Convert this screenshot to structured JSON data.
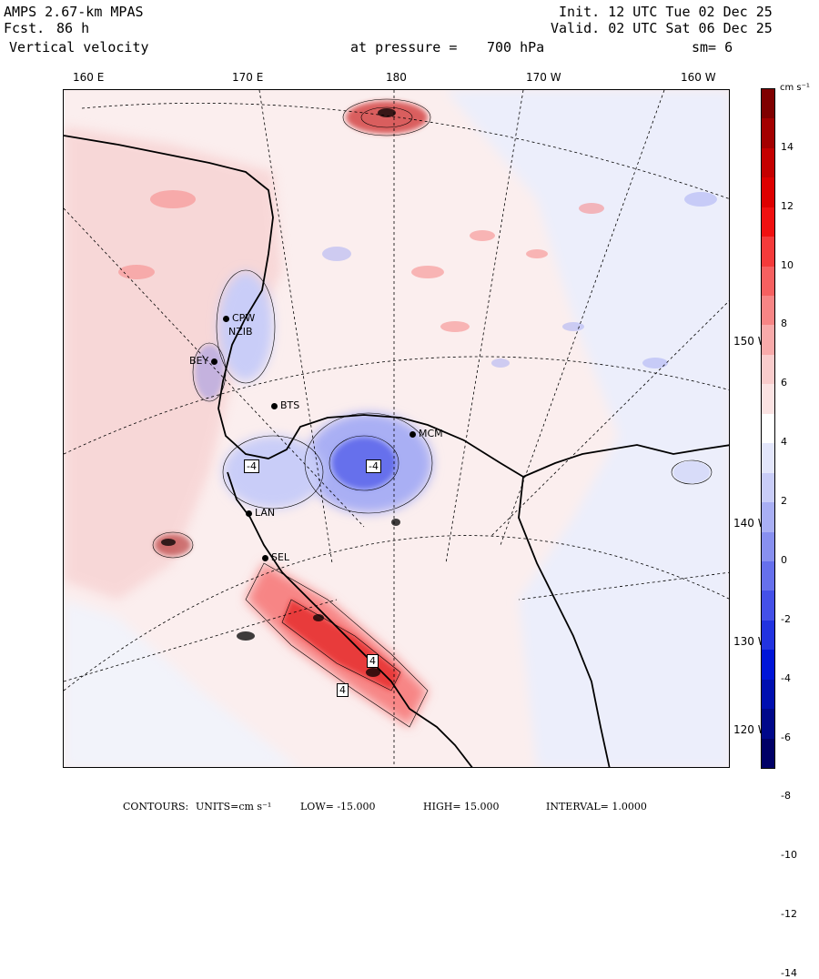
{
  "header": {
    "model": "AMPS 2.67-km MPAS",
    "forecast_label": "Fcst.",
    "forecast_value": "86 h",
    "field": "Vertical velocity",
    "init": "Init. 12 UTC Tue 02 Dec 25",
    "valid": "Valid. 02 UTC Sat 06 Dec 25",
    "pressure_label": "at pressure =",
    "pressure_value": "700 hPa",
    "smoothing": "sm= 6"
  },
  "longitude_labels": [
    "160 E",
    "170 E",
    "180",
    "170 W",
    "160 W"
  ],
  "latitude_labels": [
    "150 W",
    "140 W",
    "130 W",
    "120 W"
  ],
  "stations": [
    "CPW",
    "NZIB",
    "BEY",
    "BTS",
    "LAN",
    "SEL",
    "MCM"
  ],
  "contour_boxes": [
    "-4",
    "-4",
    "4",
    "4"
  ],
  "colorbar": {
    "units": "cm s⁻¹",
    "ticks": [
      "14",
      "12",
      "10",
      "8",
      "6",
      "4",
      "2",
      "0",
      "-2",
      "-4",
      "-6",
      "-8",
      "-10",
      "-12",
      "-14"
    ],
    "colors": [
      "#7f0000",
      "#a30000",
      "#c40000",
      "#dd0000",
      "#f01010",
      "#f43a3a",
      "#f66060",
      "#f78585",
      "#f8aaaa",
      "#f9cccc",
      "#fbe3e3",
      "#ffffff",
      "#e3e6fb",
      "#c9cdf8",
      "#a9aff4",
      "#8890f0",
      "#6670ec",
      "#4450e8",
      "#2233e0",
      "#0015d8",
      "#000fb0",
      "#00088a",
      "#000066"
    ]
  },
  "footer": {
    "contours": "CONTOURS:",
    "units": "UNITS=cm s⁻¹",
    "low": "LOW= -15.000",
    "high": "HIGH= 15.000",
    "interval": "INTERVAL= 1.0000"
  }
}
